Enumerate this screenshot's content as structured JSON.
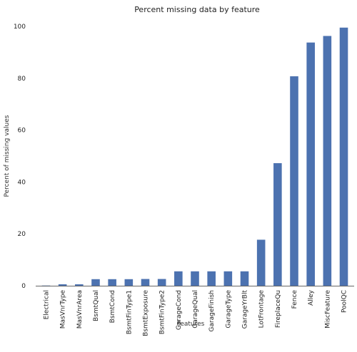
{
  "chart_data": {
    "type": "bar",
    "title": "Percent missing data by feature",
    "xlabel": "Features",
    "ylabel": "Percent of missing values",
    "ylim": [
      0,
      100
    ],
    "yticks": [
      0,
      20,
      40,
      60,
      80,
      100
    ],
    "categories": [
      "Electrical",
      "MasVnrType",
      "MasVnrArea",
      "BsmtQual",
      "BsmtCond",
      "BsmtFinType1",
      "BsmtExposure",
      "BsmtFinType2",
      "GarageCond",
      "GarageQual",
      "GarageFinish",
      "GarageType",
      "GarageYrBlt",
      "LotFrontage",
      "FireplaceQu",
      "Fence",
      "Alley",
      "MiscFeature",
      "PoolQC"
    ],
    "values": [
      0.07,
      0.55,
      0.55,
      2.53,
      2.53,
      2.53,
      2.6,
      2.6,
      5.55,
      5.55,
      5.55,
      5.55,
      5.55,
      17.74,
      47.26,
      80.75,
      93.77,
      96.3,
      99.52
    ],
    "bar_color": "#4c72b0",
    "grid": false,
    "legend": "none"
  }
}
